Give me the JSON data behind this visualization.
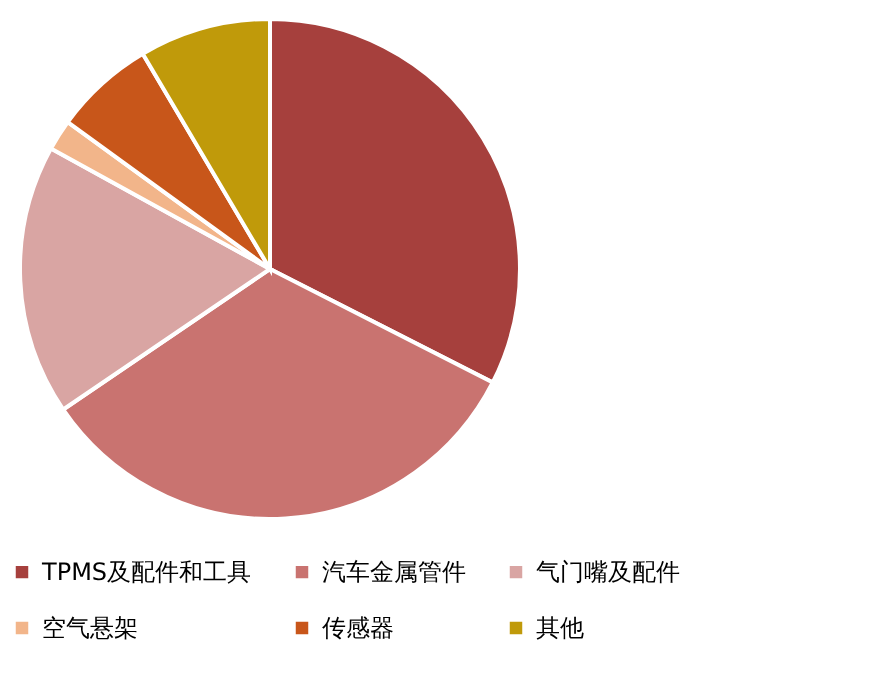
{
  "chart_data": {
    "type": "pie",
    "categories": [
      "TPMS及配件和工具",
      "汽车金属管件",
      "气门嘴及配件",
      "空气悬架",
      "传感器",
      "其他"
    ],
    "values": [
      32.5,
      33,
      17.5,
      2,
      6.5,
      8.5
    ],
    "colors": [
      "#a6403d",
      "#c97370",
      "#d9a5a3",
      "#f2b58a",
      "#c8561a",
      "#c09a0a"
    ],
    "legend": "bottom"
  }
}
